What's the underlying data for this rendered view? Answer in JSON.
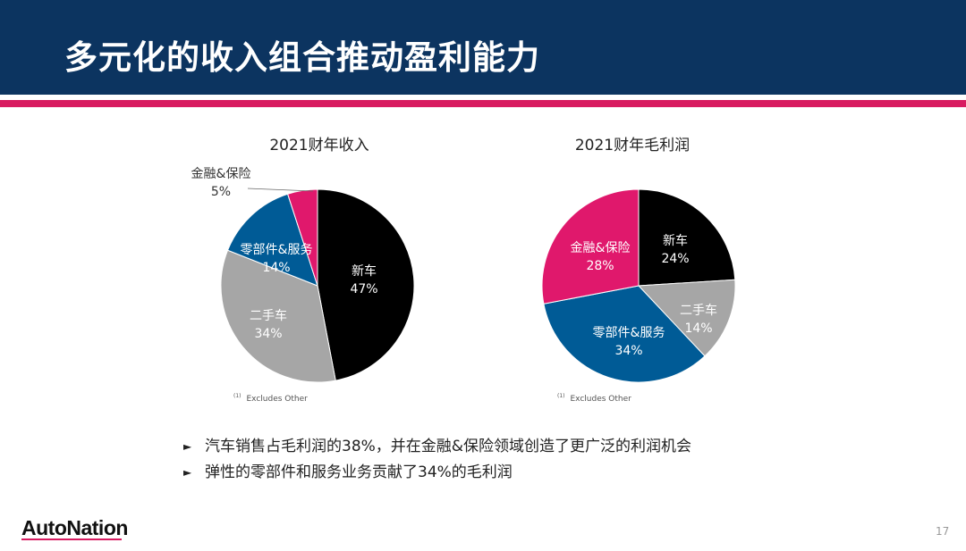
{
  "slide": {
    "title": "多元化的收入组合推动盈利能力",
    "page_number": "17",
    "logo_text": "AutoNation"
  },
  "colors": {
    "header": "#0c3460",
    "accent": "#d81b60",
    "new_car": "#000000",
    "used_car": "#a6a6a6",
    "parts_service": "#005b96",
    "finance_insurance": "#e0186c"
  },
  "chart_data": [
    {
      "type": "pie",
      "title": "2021财年收入",
      "note_marker": "(1)",
      "note": "Excludes Other",
      "slices": [
        {
          "name": "新车",
          "value": 47,
          "label": "47%",
          "color": "#000000",
          "text_color": "#ffffff"
        },
        {
          "name": "二手车",
          "value": 34,
          "label": "34%",
          "color": "#a6a6a6",
          "text_color": "#ffffff"
        },
        {
          "name": "零部件&服务",
          "value": 14,
          "label": "14%",
          "color": "#005b96",
          "text_color": "#ffffff"
        },
        {
          "name": "金融&保险",
          "value": 5,
          "label": "5%",
          "color": "#e0186c",
          "text_color": "#333333"
        }
      ]
    },
    {
      "type": "pie",
      "title": "2021财年毛利润",
      "note_marker": "(1)",
      "note": "Excludes Other",
      "slices": [
        {
          "name": "新车",
          "value": 24,
          "label": "24%",
          "color": "#000000",
          "text_color": "#ffffff"
        },
        {
          "name": "二手车",
          "value": 14,
          "label": "14%",
          "color": "#a6a6a6",
          "text_color": "#ffffff"
        },
        {
          "name": "零部件&服务",
          "value": 34,
          "label": "34%",
          "color": "#005b96",
          "text_color": "#ffffff"
        },
        {
          "name": "金融&保险",
          "value": 28,
          "label": "28%",
          "color": "#e0186c",
          "text_color": "#ffffff"
        }
      ]
    }
  ],
  "bullets": [
    "汽车销售占毛利润的38%，并在金融&保险领域创造了更广泛的利润机会",
    "弹性的零部件和服务业务贡献了34%的毛利润"
  ]
}
